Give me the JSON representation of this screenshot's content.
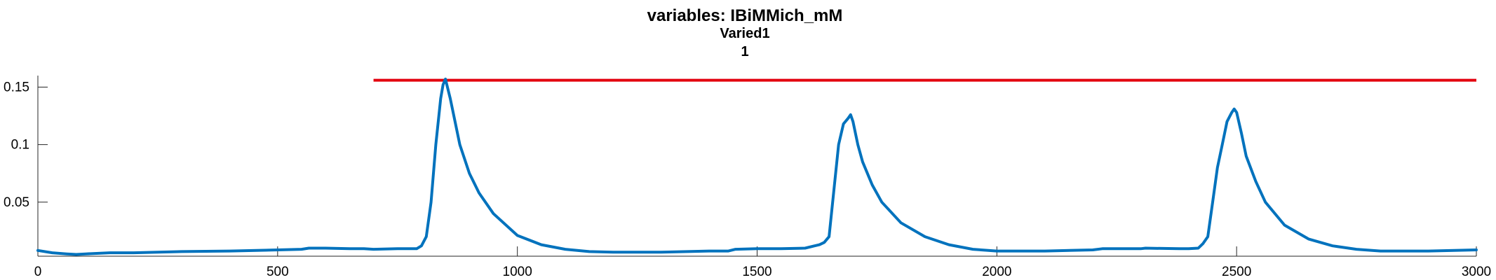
{
  "chart_data": {
    "type": "line",
    "title": "variables: IBiMMich_mM",
    "subtitle_lines": [
      "Varied1",
      "1"
    ],
    "xlabel": "",
    "ylabel": "",
    "xlim": [
      0,
      3000
    ],
    "ylim": [
      0.003,
      0.16
    ],
    "xticks": [
      0,
      500,
      1000,
      1500,
      2000,
      2500,
      3000
    ],
    "yticks": [
      0.05,
      0.1,
      0.15
    ],
    "xtick_labels": [
      "0",
      "500",
      "1000",
      "1500",
      "2000",
      "2500",
      "3000"
    ],
    "ytick_labels": [
      "0.05",
      "0.1",
      "0.15"
    ],
    "grid": false,
    "colors": {
      "series": "#0072BD",
      "threshold": "#E3000F"
    },
    "threshold": {
      "x_start": 700,
      "x_end": 3000,
      "y": 0.156
    },
    "series": [
      {
        "x": [
          0,
          30,
          60,
          80,
          100,
          150,
          200,
          300,
          400,
          500,
          550,
          565,
          600,
          650,
          680,
          700,
          750,
          780,
          790,
          800,
          810,
          820,
          830,
          840,
          845,
          850,
          860,
          870,
          880,
          900,
          920,
          950,
          1000,
          1050,
          1100,
          1150,
          1200,
          1300,
          1400,
          1440,
          1455,
          1500,
          1550,
          1600,
          1620,
          1630,
          1640,
          1650,
          1660,
          1670,
          1680,
          1690,
          1695,
          1700,
          1710,
          1720,
          1740,
          1760,
          1800,
          1850,
          1900,
          1950,
          2000,
          2100,
          2200,
          2220,
          2300,
          2310,
          2380,
          2400,
          2420,
          2430,
          2440,
          2450,
          2460,
          2470,
          2480,
          2490,
          2495,
          2500,
          2510,
          2520,
          2540,
          2560,
          2600,
          2650,
          2700,
          2750,
          2800,
          2900,
          3000
        ],
        "y": [
          0.008,
          0.006,
          0.005,
          0.0045,
          0.005,
          0.006,
          0.006,
          0.007,
          0.0075,
          0.0085,
          0.009,
          0.01,
          0.01,
          0.0095,
          0.0095,
          0.009,
          0.0095,
          0.0095,
          0.0095,
          0.012,
          0.02,
          0.05,
          0.1,
          0.14,
          0.152,
          0.157,
          0.14,
          0.12,
          0.1,
          0.075,
          0.058,
          0.04,
          0.021,
          0.013,
          0.009,
          0.007,
          0.0065,
          0.0065,
          0.0075,
          0.0075,
          0.009,
          0.0095,
          0.0095,
          0.01,
          0.012,
          0.013,
          0.015,
          0.02,
          0.06,
          0.1,
          0.118,
          0.123,
          0.126,
          0.12,
          0.1,
          0.085,
          0.065,
          0.05,
          0.032,
          0.02,
          0.013,
          0.009,
          0.0075,
          0.0075,
          0.0085,
          0.0095,
          0.0095,
          0.01,
          0.0095,
          0.0095,
          0.01,
          0.014,
          0.02,
          0.05,
          0.08,
          0.1,
          0.12,
          0.128,
          0.131,
          0.128,
          0.11,
          0.09,
          0.068,
          0.05,
          0.03,
          0.018,
          0.012,
          0.009,
          0.0075,
          0.0075,
          0.0085
        ]
      }
    ]
  }
}
